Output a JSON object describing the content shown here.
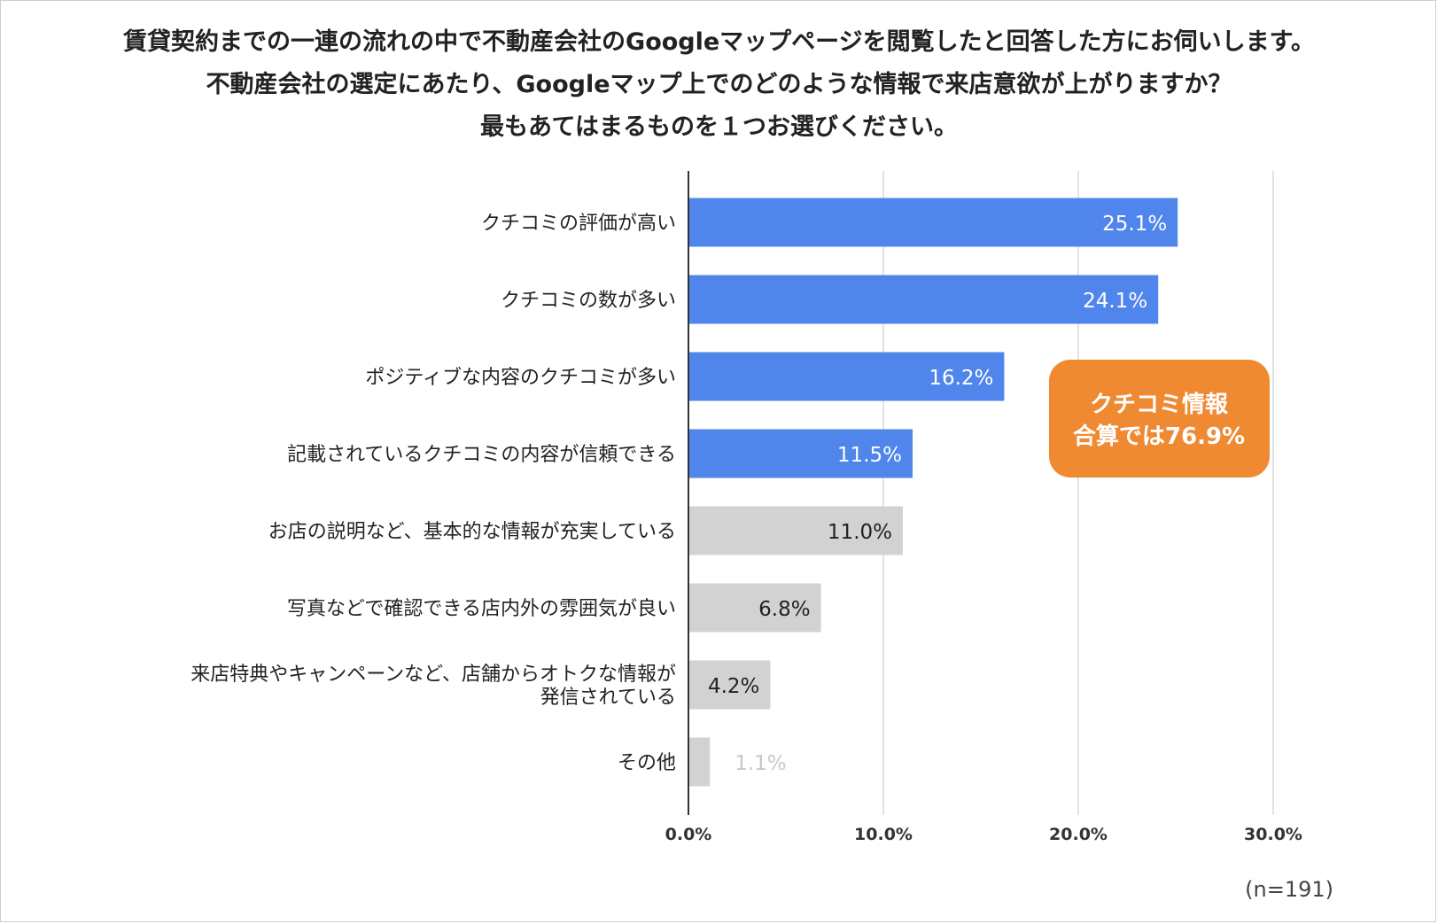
{
  "chart_data": {
    "type": "bar",
    "orientation": "horizontal",
    "title_lines": [
      "賃貸契約までの一連の流れの中で不動産会社のGoogleマップページを閲覧したと回答した方にお伺いします。",
      "不動産会社の選定にあたり、Googleマップ上でのどのような情報で来店意欲が上がりますか？",
      "最もあてはまるものを１つお選びください。"
    ],
    "categories": [
      [
        "クチコミの評価が高い"
      ],
      [
        "クチコミの数が多い"
      ],
      [
        "ポジティブな内容のクチコミが多い"
      ],
      [
        "記載されているクチコミの内容が信頼できる"
      ],
      [
        "お店の説明など、基本的な情報が充実している"
      ],
      [
        "写真などで確認できる店内外の雰囲気が良い"
      ],
      [
        "来店特典やキャンペーンなど、店舗からオトクな情報が",
        "発信されている"
      ],
      [
        "その他"
      ]
    ],
    "values": [
      25.1,
      24.1,
      16.2,
      11.5,
      11.0,
      6.8,
      4.2,
      1.1
    ],
    "value_labels": [
      "25.1%",
      "24.1%",
      "16.2%",
      "11.5%",
      "11.0%",
      "6.8%",
      "4.2%",
      "1.1%"
    ],
    "bar_colors": [
      "#5085ec",
      "#5085ec",
      "#5085ec",
      "#5085ec",
      "#d2d2d2",
      "#d2d2d2",
      "#d2d2d2",
      "#d2d2d2"
    ],
    "label_colors": [
      "#ffffff",
      "#ffffff",
      "#ffffff",
      "#ffffff",
      "#222222",
      "#222222",
      "#222222",
      "#c8c8c8"
    ],
    "xlim": [
      0,
      30
    ],
    "xticks": [
      0,
      10,
      20,
      30
    ],
    "xtick_labels": [
      "0.0%",
      "10.0%",
      "20.0%",
      "30.0%"
    ],
    "grid": true,
    "annotation": {
      "lines": [
        "クチコミ情報",
        "合算では76.9%"
      ],
      "color": "#ef8a33"
    },
    "note": "(n=191)"
  }
}
